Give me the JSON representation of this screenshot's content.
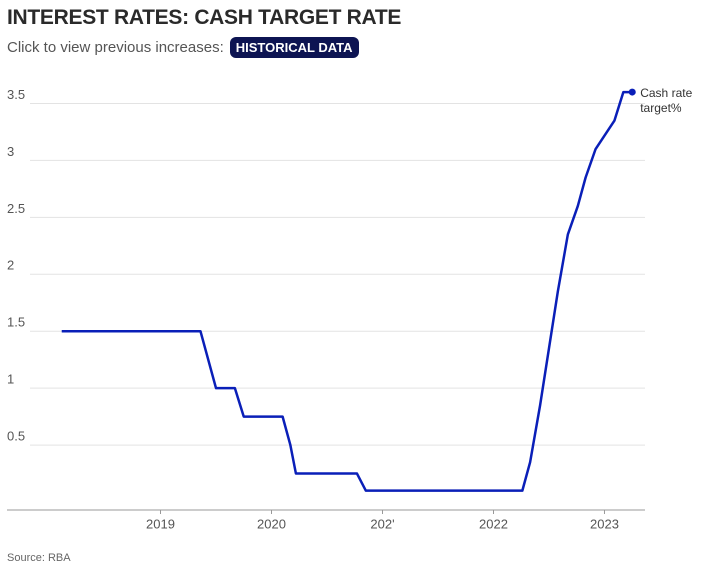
{
  "title": "INTEREST RATES: CASH TARGET RATE",
  "subtitle": "Click to view previous increases:",
  "button": "HISTORICAL DATA",
  "source": "Source: RBA",
  "chart_data": {
    "type": "line",
    "x": [
      2018.11,
      2019.36,
      2019.5,
      2019.67,
      2019.75,
      2020.1,
      2020.17,
      2020.22,
      2020.77,
      2020.85,
      2022.26,
      2022.33,
      2022.42,
      2022.5,
      2022.58,
      2022.67,
      2022.76,
      2022.83,
      2022.92,
      2023.09,
      2023.17,
      2023.25
    ],
    "series": [
      {
        "name": "Cash rate target%",
        "color": "#0a1fb8",
        "values": [
          1.5,
          1.5,
          1.0,
          1.0,
          0.75,
          0.75,
          0.5,
          0.25,
          0.25,
          0.1,
          0.1,
          0.35,
          0.85,
          1.35,
          1.85,
          2.35,
          2.6,
          2.85,
          3.1,
          3.35,
          3.6,
          3.6
        ]
      }
    ],
    "xlim": [
      2017.68,
      2023.32
    ],
    "xticks": [
      2019,
      2020,
      {
        "value": 2021,
        "label": "202'"
      },
      2022,
      2023
    ],
    "ylim": [
      -0.07,
      3.75
    ],
    "yticks": [
      0.5,
      1,
      1.5,
      2,
      2.5,
      3,
      3.5
    ],
    "grid": true
  }
}
